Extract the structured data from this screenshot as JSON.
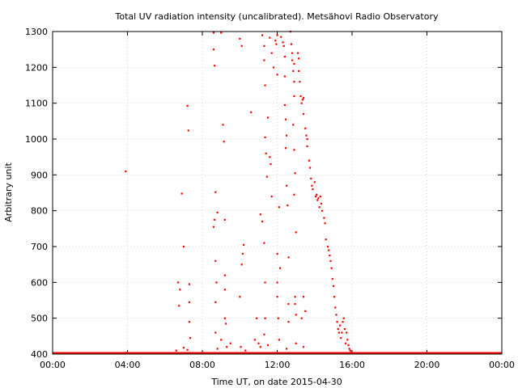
{
  "chart_data": {
    "type": "scatter",
    "title": "Total UV radiation intensity (uncalibrated). Metsähovi Radio Observatory",
    "xlabel": "Time UT, on date 2015-04-30",
    "ylabel": "Arbitrary unit",
    "xlim": [
      0,
      24
    ],
    "ylim": [
      400,
      1300
    ],
    "x_ticks": [
      0,
      4,
      8,
      12,
      16,
      20,
      24
    ],
    "x_tick_labels": [
      "00:00",
      "04:00",
      "08:00",
      "12:00",
      "16:00",
      "20:00",
      "00:00"
    ],
    "y_ticks": [
      400,
      500,
      600,
      700,
      800,
      900,
      1000,
      1100,
      1200,
      1300
    ],
    "y_tick_labels": [
      "400",
      "500",
      "600",
      "700",
      "800",
      "900",
      "1000",
      "1100",
      "1200",
      "1300"
    ],
    "grid": true,
    "series": [
      {
        "color": "#ff0000",
        "note_x_unit": "hours UT",
        "points": [
          [
            3.9,
            910
          ],
          [
            3.9,
            404
          ],
          [
            6.6,
            410
          ],
          [
            6.7,
            600
          ],
          [
            6.75,
            535
          ],
          [
            6.8,
            580
          ],
          [
            6.9,
            848
          ],
          [
            7.0,
            700
          ],
          [
            7.2,
            1093
          ],
          [
            7.25,
            1024
          ],
          [
            7.3,
            595
          ],
          [
            7.3,
            545
          ],
          [
            7.3,
            490
          ],
          [
            7.35,
            445
          ],
          [
            7.2,
            412
          ],
          [
            7.0,
            418
          ],
          [
            8.6,
            1297
          ],
          [
            8.6,
            1250
          ],
          [
            8.65,
            1205
          ],
          [
            8.7,
            852
          ],
          [
            8.65,
            775
          ],
          [
            8.6,
            755
          ],
          [
            8.7,
            660
          ],
          [
            8.8,
            795
          ],
          [
            8.75,
            600
          ],
          [
            8.7,
            545
          ],
          [
            8.7,
            460
          ],
          [
            8.8,
            415
          ],
          [
            9.0,
            1297
          ],
          [
            9.1,
            1040
          ],
          [
            9.15,
            993
          ],
          [
            9.2,
            775
          ],
          [
            9.2,
            620
          ],
          [
            9.2,
            580
          ],
          [
            9.2,
            500
          ],
          [
            9.25,
            485
          ],
          [
            9.0,
            440
          ],
          [
            9.3,
            420
          ],
          [
            9.5,
            430
          ],
          [
            10.0,
            1280
          ],
          [
            10.1,
            1260
          ],
          [
            10.2,
            705
          ],
          [
            10.15,
            680
          ],
          [
            10.1,
            650
          ],
          [
            10.0,
            560
          ],
          [
            10.05,
            420
          ],
          [
            10.3,
            410
          ],
          [
            10.6,
            1075
          ],
          [
            10.8,
            440
          ],
          [
            10.9,
            500
          ],
          [
            11.0,
            430
          ],
          [
            11.1,
            420
          ],
          [
            11.1,
            790
          ],
          [
            11.2,
            770
          ],
          [
            11.2,
            1290
          ],
          [
            11.3,
            1260
          ],
          [
            11.3,
            1220
          ],
          [
            11.35,
            1150
          ],
          [
            11.35,
            1005
          ],
          [
            11.4,
            960
          ],
          [
            11.45,
            895
          ],
          [
            11.5,
            1060
          ],
          [
            11.3,
            710
          ],
          [
            11.35,
            600
          ],
          [
            11.35,
            500
          ],
          [
            11.3,
            455
          ],
          [
            11.5,
            425
          ],
          [
            11.6,
            1283
          ],
          [
            11.7,
            1240
          ],
          [
            11.6,
            950
          ],
          [
            11.65,
            930
          ],
          [
            11.7,
            840
          ],
          [
            11.8,
            1200
          ],
          [
            11.9,
            1275
          ],
          [
            11.95,
            1265
          ],
          [
            12.0,
            1290
          ],
          [
            12.0,
            1180
          ],
          [
            12.0,
            680
          ],
          [
            12.0,
            600
          ],
          [
            12.0,
            560
          ],
          [
            12.05,
            500
          ],
          [
            12.1,
            440
          ],
          [
            12.1,
            810
          ],
          [
            12.15,
            640
          ],
          [
            12.2,
            1285
          ],
          [
            12.3,
            1270
          ],
          [
            12.35,
            1260
          ],
          [
            12.4,
            1230
          ],
          [
            12.4,
            1175
          ],
          [
            12.4,
            1095
          ],
          [
            12.45,
            1055
          ],
          [
            12.5,
            1010
          ],
          [
            12.45,
            975
          ],
          [
            12.5,
            870
          ],
          [
            12.55,
            815
          ],
          [
            12.6,
            670
          ],
          [
            12.6,
            540
          ],
          [
            12.6,
            490
          ],
          [
            12.5,
            415
          ],
          [
            12.7,
            1300
          ],
          [
            12.75,
            1265
          ],
          [
            12.8,
            1240
          ],
          [
            12.8,
            1220
          ],
          [
            12.85,
            1190
          ],
          [
            12.9,
            1210
          ],
          [
            12.9,
            1160
          ],
          [
            12.9,
            1120
          ],
          [
            12.85,
            1040
          ],
          [
            12.9,
            970
          ],
          [
            12.95,
            905
          ],
          [
            12.9,
            845
          ],
          [
            13.0,
            740
          ],
          [
            12.95,
            560
          ],
          [
            12.95,
            540
          ],
          [
            13.0,
            510
          ],
          [
            13.0,
            430
          ],
          [
            13.1,
            1240
          ],
          [
            13.15,
            1225
          ],
          [
            13.15,
            1190
          ],
          [
            13.2,
            1160
          ],
          [
            13.25,
            1120
          ],
          [
            13.3,
            1100
          ],
          [
            13.35,
            1110
          ],
          [
            13.4,
            1115
          ],
          [
            13.4,
            1070
          ],
          [
            13.5,
            1030
          ],
          [
            13.55,
            1010
          ],
          [
            13.6,
            1000
          ],
          [
            13.6,
            980
          ],
          [
            13.4,
            560
          ],
          [
            13.5,
            520
          ],
          [
            13.3,
            500
          ],
          [
            13.4,
            420
          ],
          [
            13.7,
            940
          ],
          [
            13.75,
            920
          ],
          [
            13.8,
            890
          ],
          [
            13.85,
            870
          ],
          [
            13.9,
            860
          ],
          [
            14.0,
            880
          ],
          [
            14.05,
            840
          ],
          [
            14.1,
            845
          ],
          [
            14.15,
            830
          ],
          [
            14.2,
            835
          ],
          [
            14.25,
            810
          ],
          [
            14.3,
            840
          ],
          [
            14.35,
            820
          ],
          [
            14.4,
            800
          ],
          [
            14.5,
            780
          ],
          [
            14.55,
            765
          ],
          [
            14.6,
            720
          ],
          [
            14.7,
            700
          ],
          [
            14.75,
            690
          ],
          [
            14.8,
            675
          ],
          [
            14.85,
            660
          ],
          [
            14.9,
            640
          ],
          [
            14.95,
            610
          ],
          [
            15.0,
            590
          ],
          [
            15.05,
            560
          ],
          [
            15.1,
            530
          ],
          [
            15.15,
            510
          ],
          [
            15.2,
            490
          ],
          [
            15.25,
            470
          ],
          [
            15.3,
            460
          ],
          [
            15.35,
            480
          ],
          [
            15.4,
            445
          ],
          [
            15.45,
            460
          ],
          [
            15.5,
            490
          ],
          [
            15.55,
            500
          ],
          [
            15.6,
            470
          ],
          [
            15.65,
            430
          ],
          [
            15.7,
            460
          ],
          [
            15.75,
            440
          ],
          [
            15.8,
            425
          ],
          [
            15.85,
            415
          ],
          [
            15.9,
            410
          ],
          [
            15.95,
            405
          ],
          [
            16.0,
            402
          ]
        ],
        "baseline": {
          "value": 401,
          "from": 0,
          "to": 24
        }
      }
    ]
  }
}
